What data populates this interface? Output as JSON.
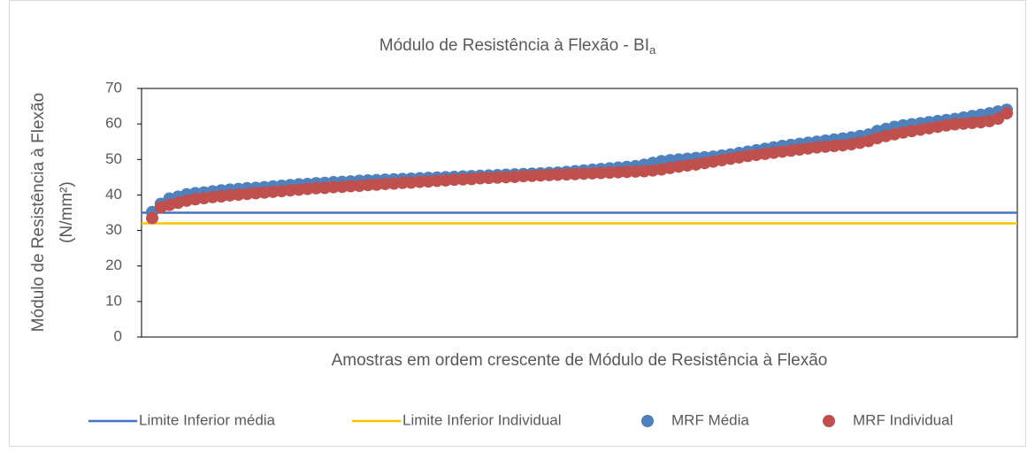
{
  "chart_data": {
    "type": "scatter",
    "title": "Módulo de Resistência à Flexão - BI",
    "title_subscript": "a",
    "y_label": [
      "Módulo de Resistência à Flexão",
      "(N/mm²)"
    ],
    "x_label": "Amostras em ordem crescente de Módulo de Resistência à Flexão",
    "ylim": [
      0,
      70
    ],
    "yticks": [
      0,
      10,
      20,
      30,
      40,
      50,
      60,
      70
    ],
    "legend": "bottom",
    "series": [
      {
        "name": "Limite Inferior média",
        "color": "#4472c4",
        "kind": "line",
        "value": 35
      },
      {
        "name": "Limite Inferior Individual",
        "color": "#ffc000",
        "kind": "line",
        "value": 32
      },
      {
        "name": "MRF Média",
        "color": "#4f81bd",
        "kind": "points",
        "values": [
          35.2,
          37.5,
          39.0,
          39.5,
          40.2,
          40.5,
          40.7,
          41.0,
          41.3,
          41.5,
          41.7,
          41.9,
          42.0,
          42.2,
          42.4,
          42.6,
          42.8,
          43.0,
          43.1,
          43.3,
          43.4,
          43.6,
          43.7,
          43.8,
          44.0,
          44.1,
          44.2,
          44.3,
          44.4,
          44.5,
          44.6,
          44.7,
          44.8,
          44.9,
          45.0,
          45.1,
          45.2,
          45.3,
          45.4,
          45.5,
          45.6,
          45.7,
          45.8,
          45.9,
          46.0,
          46.1,
          46.2,
          46.3,
          46.5,
          46.7,
          46.9,
          47.1,
          47.3,
          47.5,
          47.7,
          47.9,
          48.1,
          48.5,
          49.0,
          49.5,
          49.8,
          50.0,
          50.2,
          50.4,
          50.6,
          50.8,
          51.1,
          51.4,
          51.8,
          52.2,
          52.6,
          53.0,
          53.4,
          53.8,
          54.1,
          54.4,
          54.7,
          55.0,
          55.3,
          55.6,
          55.9,
          56.2,
          56.6,
          57.0,
          58.0,
          58.6,
          59.2,
          59.6,
          59.9,
          60.2,
          60.5,
          60.8,
          61.1,
          61.4,
          61.8,
          62.2,
          62.6,
          63.0,
          63.5,
          64.0
        ]
      },
      {
        "name": "MRF Individual",
        "color": "#c0504d",
        "kind": "points",
        "values": [
          33.5,
          36.5,
          37.2,
          37.8,
          38.4,
          38.8,
          39.1,
          39.4,
          39.6,
          39.9,
          40.1,
          40.3,
          40.5,
          40.7,
          40.9,
          41.1,
          41.3,
          41.5,
          41.7,
          41.9,
          42.0,
          42.2,
          42.3,
          42.5,
          42.6,
          42.8,
          42.9,
          43.1,
          43.2,
          43.4,
          43.5,
          43.7,
          43.8,
          44.0,
          44.1,
          44.3,
          44.4,
          44.5,
          44.7,
          44.8,
          44.9,
          45.0,
          45.1,
          45.3,
          45.4,
          45.5,
          45.6,
          45.7,
          45.8,
          45.9,
          46.0,
          46.1,
          46.2,
          46.3,
          46.4,
          46.5,
          46.6,
          46.7,
          46.9,
          47.2,
          47.6,
          48.0,
          48.3,
          48.6,
          49.0,
          49.4,
          49.8,
          50.2,
          50.6,
          51.0,
          51.3,
          51.6,
          51.9,
          52.2,
          52.5,
          52.8,
          53.1,
          53.4,
          53.6,
          53.8,
          54.0,
          54.3,
          54.7,
          55.2,
          56.0,
          56.6,
          57.1,
          57.6,
          58.0,
          58.4,
          58.8,
          59.2,
          59.6,
          59.9,
          60.1,
          60.3,
          60.5,
          60.8,
          61.5,
          63.0
        ]
      }
    ]
  }
}
